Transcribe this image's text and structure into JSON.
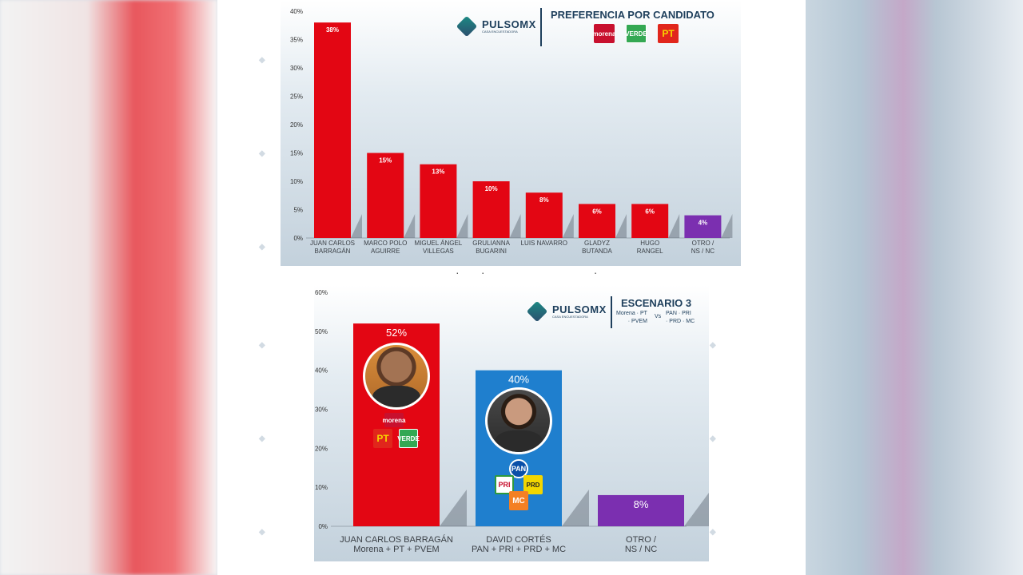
{
  "brand": {
    "name": "PULSOMX",
    "tagline": "CASA ENCUESTADORA"
  },
  "chart_data": [
    {
      "type": "bar",
      "title": "PREFERENCIA POR CANDIDATO",
      "parties": [
        "morena",
        "VERDE",
        "PT"
      ],
      "categories": [
        [
          "JUAN CARLOS",
          "BARRAGÁN"
        ],
        [
          "MARCO POLO",
          "AGUIRRE"
        ],
        [
          "MIGUEL ÁNGEL",
          "VILLEGAS"
        ],
        [
          "GRULIANNA",
          "BUGARINI"
        ],
        [
          "LUIS NAVARRO"
        ],
        [
          "GLADYZ",
          "BUTANDA"
        ],
        [
          "HUGO",
          "RANGEL"
        ],
        [
          "OTRO /",
          "NS / NC"
        ]
      ],
      "values": [
        38,
        15,
        13,
        10,
        8,
        6,
        6,
        4
      ],
      "value_labels": [
        "38%",
        "15%",
        "13%",
        "10%",
        "8%",
        "6%",
        "6%",
        "4%"
      ],
      "colors": [
        "#e30613",
        "#e30613",
        "#e30613",
        "#e30613",
        "#e30613",
        "#e30613",
        "#e30613",
        "#7b2fb0"
      ],
      "ylim": [
        0,
        40
      ],
      "yticks": [
        0,
        5,
        10,
        15,
        20,
        25,
        30,
        35,
        40
      ],
      "ytick_labels": [
        "0%",
        "5%",
        "10%",
        "15%",
        "20%",
        "25%",
        "30%",
        "35%",
        "40%"
      ]
    },
    {
      "type": "bar",
      "title": "ESCENARIO 3",
      "subtitle_left": [
        "Morena · PT",
        "· PVEM"
      ],
      "vs": "Vs",
      "subtitle_right": [
        "PAN · PRI",
        "· PRD · MC"
      ],
      "categories": [
        [
          "JUAN CARLOS BARRAGÁN",
          "Morena + PT + PVEM"
        ],
        [
          "DAVID CORTÉS",
          "PAN + PRI + PRD + MC"
        ],
        [
          "OTRO /",
          "NS / NC"
        ]
      ],
      "values": [
        52,
        40,
        8
      ],
      "value_labels": [
        "52%",
        "40%",
        "8%"
      ],
      "colors": [
        "#e30613",
        "#1f7fce",
        "#7b2fb0"
      ],
      "ylim": [
        0,
        60
      ],
      "yticks": [
        0,
        10,
        20,
        30,
        40,
        50,
        60
      ],
      "ytick_labels": [
        "0%",
        "10%",
        "20%",
        "30%",
        "40%",
        "50%",
        "60%"
      ],
      "bar_parties": [
        [
          "morena",
          "PT",
          "VERDE"
        ],
        [
          "PAN",
          "PRI",
          "PRD",
          "MC"
        ],
        []
      ]
    }
  ]
}
